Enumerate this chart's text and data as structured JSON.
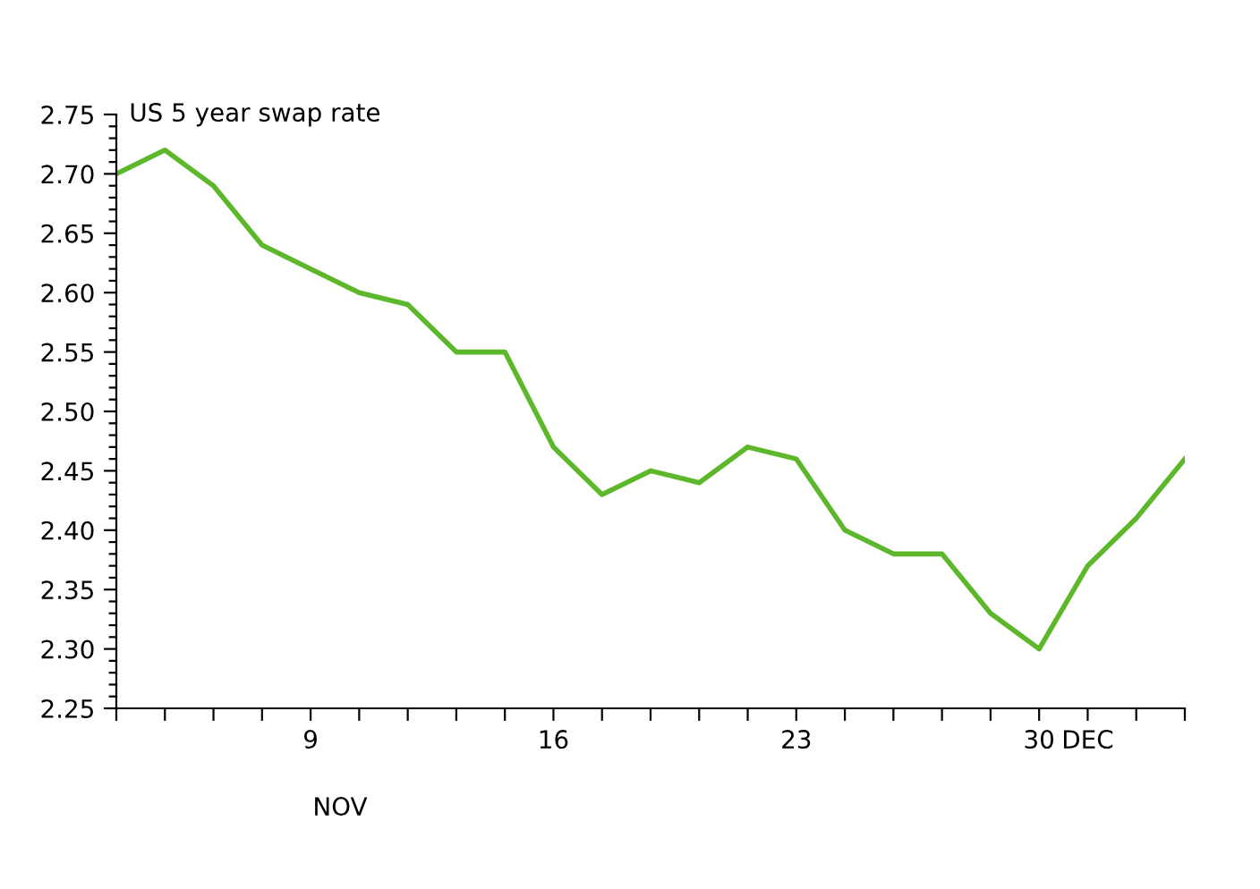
{
  "chart_data": {
    "type": "line",
    "title": "US 5 year swap rate",
    "categories": [
      null,
      null,
      null,
      null,
      "9",
      null,
      null,
      null,
      null,
      "16",
      null,
      null,
      null,
      null,
      "23",
      null,
      null,
      null,
      null,
      "30",
      "DEC",
      null,
      null
    ],
    "series": [
      {
        "color": "#5cb82a",
        "values": [
          2.7,
          2.72,
          2.69,
          2.64,
          2.62,
          2.6,
          2.59,
          2.55,
          2.55,
          2.47,
          2.43,
          2.45,
          2.44,
          2.47,
          2.46,
          2.4,
          2.38,
          2.38,
          2.33,
          2.3,
          2.37,
          2.41,
          2.46
        ]
      }
    ],
    "ylim": [
      2.25,
      2.75
    ],
    "yticks": [
      {
        "value": 2.25,
        "label": "2.25"
      },
      {
        "value": 2.3,
        "label": "2.30"
      },
      {
        "value": 2.35,
        "label": "2.35"
      },
      {
        "value": 2.4,
        "label": "2.40"
      },
      {
        "value": 2.45,
        "label": "2.45"
      },
      {
        "value": 2.5,
        "label": "2.50"
      },
      {
        "value": 2.55,
        "label": "2.55"
      },
      {
        "value": 2.6,
        "label": "2.60"
      },
      {
        "value": 2.65,
        "label": "2.65"
      },
      {
        "value": 2.7,
        "label": "2.70"
      },
      {
        "value": 2.75,
        "label": "2.75"
      }
    ],
    "annotations": [
      "NOV"
    ],
    "grid": false,
    "legend": false,
    "marker": "none",
    "line_style": "solid"
  }
}
